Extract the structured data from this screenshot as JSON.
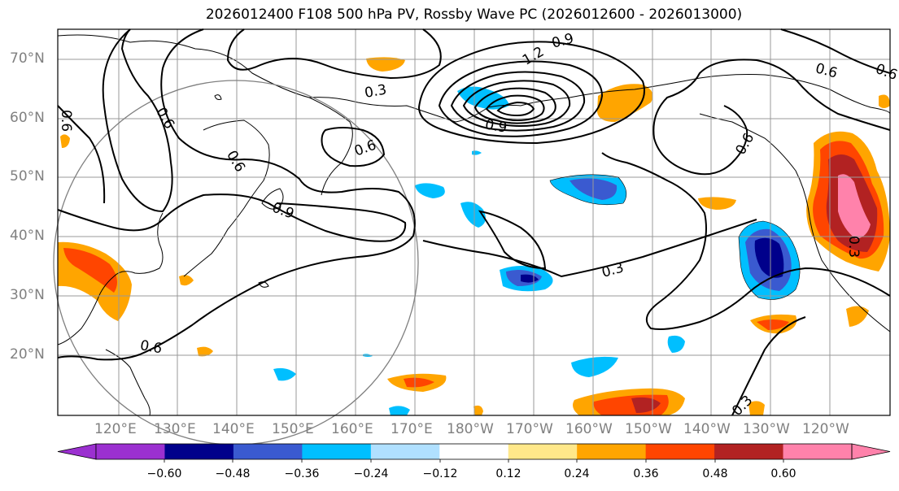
{
  "title": "2026012400 F108 500 hPa PV, Rossby Wave PC (2026012600 - 2026013000)",
  "lat_labels": [
    "70°N",
    "60°N",
    "50°N",
    "40°N",
    "30°N",
    "20°N"
  ],
  "lon_labels": [
    "120°E",
    "130°E",
    "140°E",
    "150°E",
    "160°E",
    "170°E",
    "180°W",
    "170°W",
    "160°W",
    "150°W",
    "140°W",
    "130°W",
    "120°W"
  ],
  "contour_labels": {
    "c1": "0.9",
    "c2": "1.2",
    "c3": "0.3",
    "c4": "0.6",
    "c5": "0.6",
    "c6": "0.6",
    "c7": "0.9",
    "c8": "0.3",
    "c9": "0.6",
    "c10": "0.3",
    "c11": "0.6",
    "c12": "0.6",
    "c13": "0.6",
    "c14": "0.3",
    "c15": "0.9",
    "c16": "0.6"
  },
  "colorbar": {
    "ticks": [
      "−0.60",
      "−0.48",
      "−0.36",
      "−0.24",
      "−0.12",
      "0.12",
      "0.24",
      "0.36",
      "0.48",
      "0.60"
    ],
    "colors": [
      "#9b30d0",
      "#00008b",
      "#3a5ad0",
      "#00bfff",
      "#b0e0ff",
      "#ffffff",
      "#ffe88a",
      "#ffa500",
      "#ff4500",
      "#b22222",
      "#ff82ab",
      "#ff82ab"
    ]
  }
}
